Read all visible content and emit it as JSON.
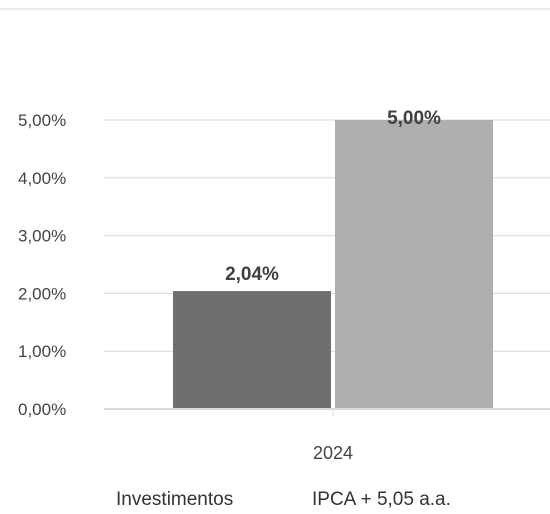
{
  "chart_data": {
    "type": "bar",
    "categories": [
      "2024"
    ],
    "series": [
      {
        "name": "Investimentos",
        "values": [
          2.04
        ],
        "color": "#6f6f6f"
      },
      {
        "name": "IPCA + 5,05 a.a.",
        "values": [
          5.0
        ],
        "color": "#afafaf"
      }
    ],
    "data_labels": [
      "2,04%",
      "5,00%"
    ],
    "y_ticks": [
      {
        "value": 0,
        "label": "0,00%"
      },
      {
        "value": 1,
        "label": "1,00%"
      },
      {
        "value": 2,
        "label": "2,00%"
      },
      {
        "value": 3,
        "label": "3,00%"
      },
      {
        "value": 4,
        "label": "4,00%"
      },
      {
        "value": 5,
        "label": "5,00%"
      }
    ],
    "ylim": [
      0,
      5
    ],
    "grid": true,
    "legend_position": "bottom"
  }
}
